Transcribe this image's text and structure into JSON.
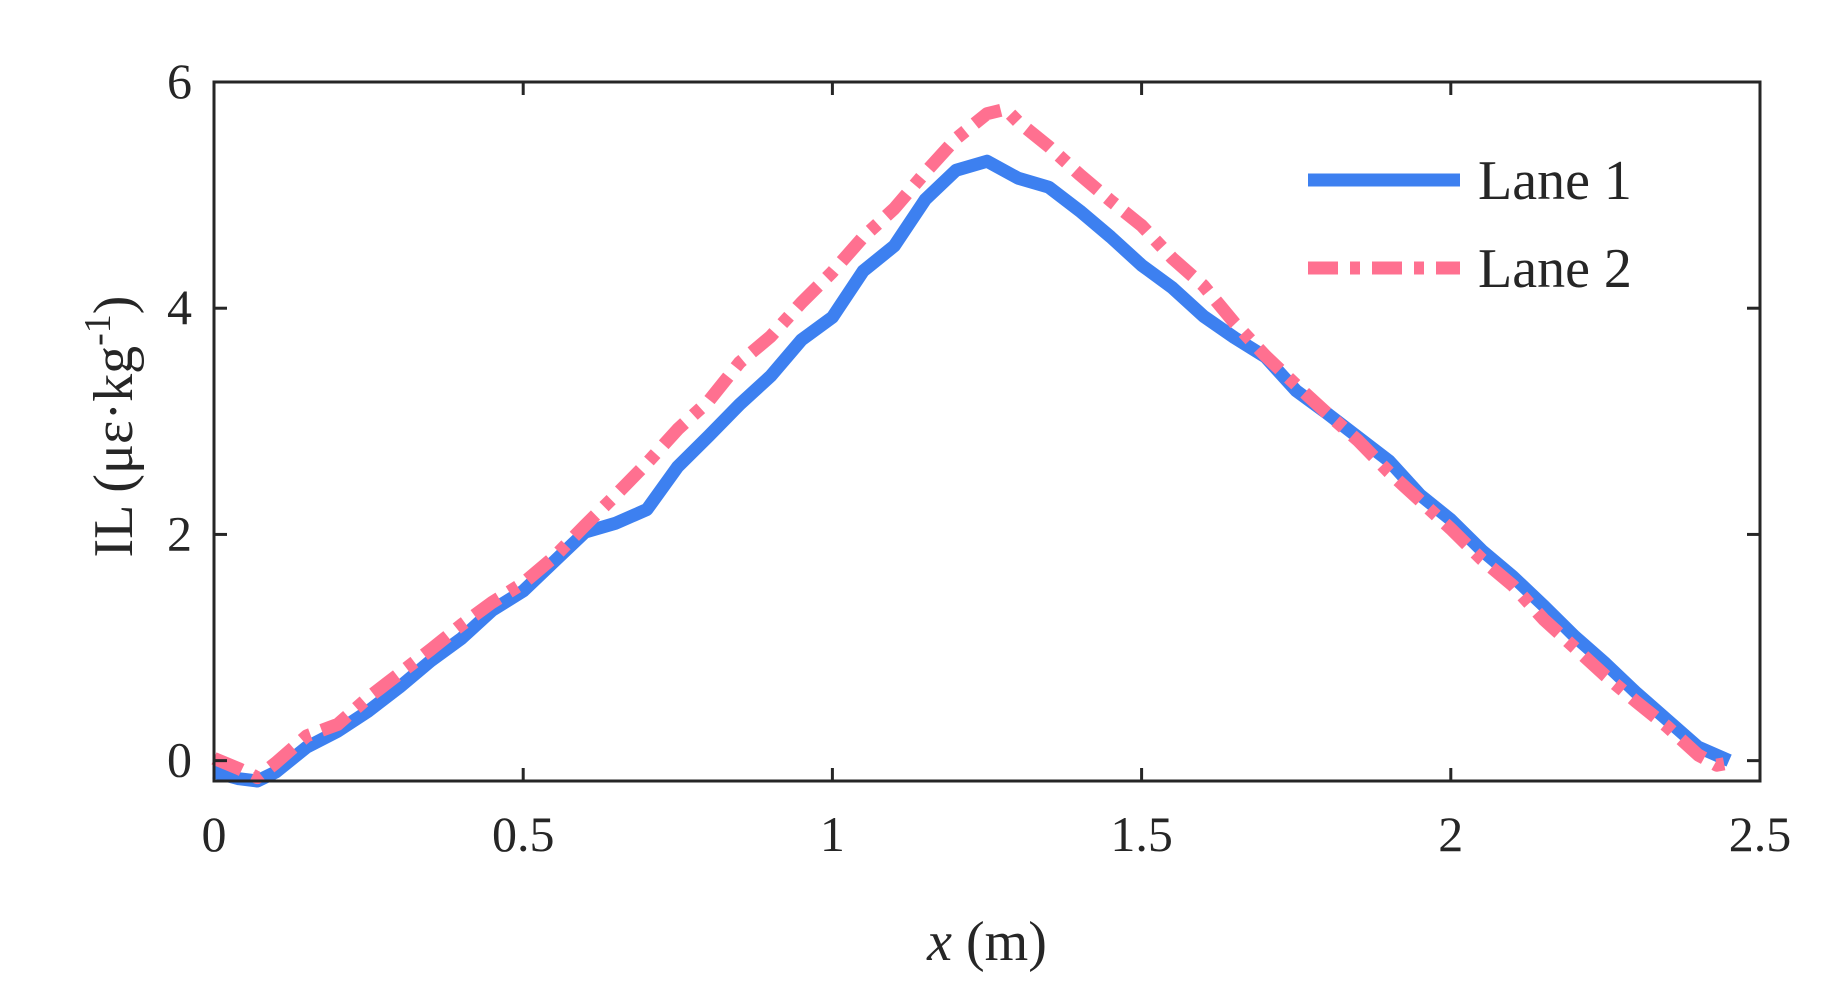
{
  "chart_data": {
    "type": "line",
    "title": "",
    "xlabel": {
      "var": "x",
      "unit": " (m)"
    },
    "ylabel": {
      "prefix": "IL (με·kg",
      "sup": "-1",
      "suffix": ")"
    },
    "xlim": [
      0,
      2.5
    ],
    "ylim": [
      -0.18,
      6
    ],
    "xticks": [
      0,
      0.5,
      1,
      1.5,
      2,
      2.5
    ],
    "xtick_labels": [
      "0",
      "0.5",
      "1",
      "1.5",
      "2",
      "2.5"
    ],
    "yticks": [
      0,
      2,
      4,
      6
    ],
    "ytick_labels": [
      "0",
      "2",
      "4",
      "6"
    ],
    "grid": false,
    "legend_position": "top-right",
    "series": [
      {
        "name": "Lane 1",
        "color": "#3d80f0",
        "style": "solid",
        "points": [
          [
            0.0,
            -0.1
          ],
          [
            0.04,
            -0.16
          ],
          [
            0.07,
            -0.18
          ],
          [
            0.1,
            -0.1
          ],
          [
            0.15,
            0.12
          ],
          [
            0.2,
            0.26
          ],
          [
            0.25,
            0.44
          ],
          [
            0.3,
            0.65
          ],
          [
            0.35,
            0.88
          ],
          [
            0.4,
            1.08
          ],
          [
            0.45,
            1.33
          ],
          [
            0.5,
            1.5
          ],
          [
            0.55,
            1.76
          ],
          [
            0.6,
            2.02
          ],
          [
            0.65,
            2.1
          ],
          [
            0.7,
            2.22
          ],
          [
            0.75,
            2.6
          ],
          [
            0.8,
            2.87
          ],
          [
            0.85,
            3.15
          ],
          [
            0.9,
            3.4
          ],
          [
            0.95,
            3.72
          ],
          [
            1.0,
            3.92
          ],
          [
            1.05,
            4.33
          ],
          [
            1.1,
            4.55
          ],
          [
            1.15,
            4.96
          ],
          [
            1.2,
            5.22
          ],
          [
            1.25,
            5.3
          ],
          [
            1.3,
            5.15
          ],
          [
            1.35,
            5.07
          ],
          [
            1.4,
            4.86
          ],
          [
            1.45,
            4.63
          ],
          [
            1.5,
            4.38
          ],
          [
            1.55,
            4.18
          ],
          [
            1.6,
            3.93
          ],
          [
            1.65,
            3.74
          ],
          [
            1.7,
            3.57
          ],
          [
            1.75,
            3.27
          ],
          [
            1.8,
            3.07
          ],
          [
            1.85,
            2.86
          ],
          [
            1.9,
            2.65
          ],
          [
            1.95,
            2.35
          ],
          [
            2.0,
            2.13
          ],
          [
            2.05,
            1.86
          ],
          [
            2.1,
            1.63
          ],
          [
            2.15,
            1.37
          ],
          [
            2.2,
            1.1
          ],
          [
            2.25,
            0.86
          ],
          [
            2.3,
            0.6
          ],
          [
            2.35,
            0.36
          ],
          [
            2.4,
            0.12
          ],
          [
            2.45,
            0.0
          ]
        ]
      },
      {
        "name": "Lane 2",
        "color": "#ff7090",
        "style": "dashdot",
        "points": [
          [
            0.0,
            0.02
          ],
          [
            0.04,
            -0.07
          ],
          [
            0.07,
            -0.15
          ],
          [
            0.1,
            -0.02
          ],
          [
            0.15,
            0.22
          ],
          [
            0.2,
            0.32
          ],
          [
            0.25,
            0.56
          ],
          [
            0.3,
            0.77
          ],
          [
            0.35,
            0.98
          ],
          [
            0.4,
            1.2
          ],
          [
            0.45,
            1.4
          ],
          [
            0.5,
            1.57
          ],
          [
            0.55,
            1.8
          ],
          [
            0.6,
            2.08
          ],
          [
            0.65,
            2.35
          ],
          [
            0.7,
            2.63
          ],
          [
            0.75,
            2.93
          ],
          [
            0.8,
            3.18
          ],
          [
            0.85,
            3.52
          ],
          [
            0.9,
            3.75
          ],
          [
            0.95,
            4.05
          ],
          [
            1.0,
            4.32
          ],
          [
            1.05,
            4.63
          ],
          [
            1.1,
            4.88
          ],
          [
            1.15,
            5.2
          ],
          [
            1.2,
            5.5
          ],
          [
            1.25,
            5.72
          ],
          [
            1.28,
            5.76
          ],
          [
            1.3,
            5.65
          ],
          [
            1.35,
            5.43
          ],
          [
            1.4,
            5.18
          ],
          [
            1.45,
            4.95
          ],
          [
            1.5,
            4.73
          ],
          [
            1.55,
            4.44
          ],
          [
            1.6,
            4.2
          ],
          [
            1.65,
            3.87
          ],
          [
            1.7,
            3.58
          ],
          [
            1.75,
            3.32
          ],
          [
            1.8,
            3.07
          ],
          [
            1.85,
            2.83
          ],
          [
            1.9,
            2.55
          ],
          [
            1.95,
            2.3
          ],
          [
            2.0,
            2.05
          ],
          [
            2.05,
            1.78
          ],
          [
            2.1,
            1.55
          ],
          [
            2.15,
            1.25
          ],
          [
            2.2,
            1.0
          ],
          [
            2.25,
            0.75
          ],
          [
            2.3,
            0.52
          ],
          [
            2.35,
            0.3
          ],
          [
            2.4,
            0.05
          ],
          [
            2.43,
            -0.04
          ],
          [
            2.45,
            -0.02
          ]
        ]
      }
    ]
  }
}
